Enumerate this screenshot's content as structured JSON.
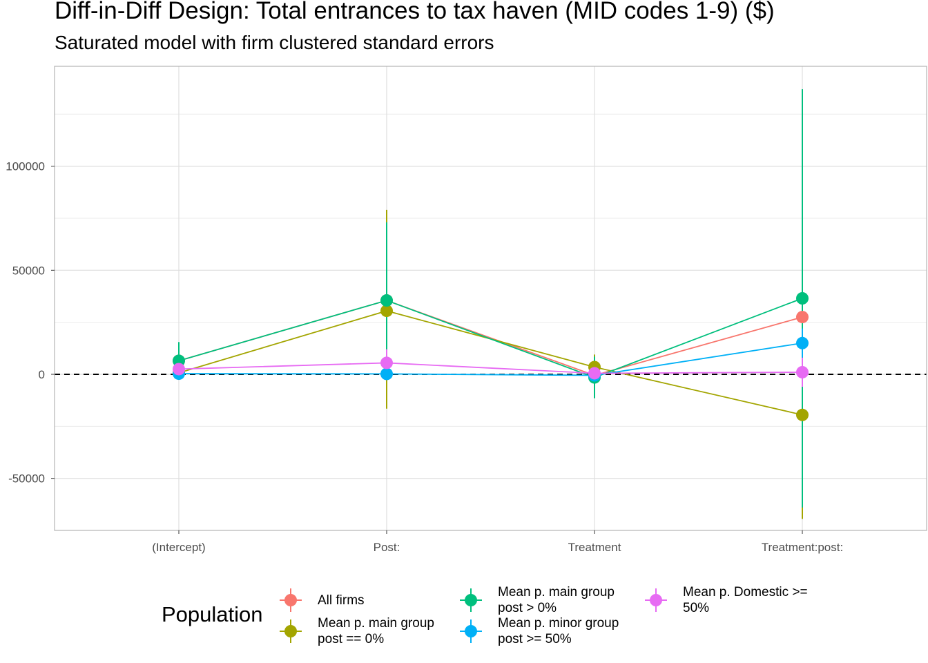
{
  "title": "Diff-in-Diff Design: Total entrances to tax haven (MID codes 1-9)  ($)",
  "subtitle": "Saturated model with firm clustered standard errors",
  "legend": {
    "title": "Population",
    "position": "bottom"
  },
  "chart_data": {
    "type": "line",
    "categories": [
      "(Intercept)",
      "Post:",
      "Treatment",
      "Treatment:post:"
    ],
    "ylim": [
      -75000,
      148000
    ],
    "y_ticks": [
      {
        "value": -50000,
        "label": "-50000"
      },
      {
        "value": 0,
        "label": "0"
      },
      {
        "value": 50000,
        "label": "50000"
      },
      {
        "value": 100000,
        "label": "100000"
      }
    ],
    "y_minor_ticks": [
      -75000,
      -25000,
      25000,
      75000,
      125000
    ],
    "reference_line": {
      "y": 0,
      "style": "dashed",
      "color": "#000000"
    },
    "grid": true,
    "series": [
      {
        "name": "All firms",
        "color": "#F8766D",
        "values": [
          6500,
          35500,
          -500,
          27500
        ],
        "lower": [
          2500,
          18000,
          -8000,
          18000
        ],
        "upper": [
          10500,
          53000,
          7000,
          37000
        ]
      },
      {
        "name": "Mean p. main group\npost == 0%",
        "color": "#A3A500",
        "values": [
          700,
          30500,
          3500,
          -19500
        ],
        "lower": [
          -2000,
          -16500,
          -2500,
          -69500
        ],
        "upper": [
          3400,
          79000,
          9500,
          30500
        ]
      },
      {
        "name": "Mean p. main group\npost > 0%",
        "color": "#00BF7D",
        "values": [
          6500,
          35500,
          -1500,
          36500
        ],
        "lower": [
          -2500,
          -2000,
          -11500,
          -64000
        ],
        "upper": [
          15500,
          73000,
          8500,
          137000
        ]
      },
      {
        "name": "Mean p. minor group\npost >= 50%",
        "color": "#00B0F6",
        "values": [
          300,
          200,
          -500,
          15000
        ],
        "lower": [
          -1500,
          -2000,
          -3000,
          8000
        ],
        "upper": [
          2100,
          2400,
          2000,
          22000
        ]
      },
      {
        "name": "Mean p. Domestic >=\n50%",
        "color": "#E76BF3",
        "values": [
          2500,
          5500,
          500,
          1000
        ],
        "lower": [
          -1500,
          -1000,
          -2500,
          -6000
        ],
        "upper": [
          6500,
          12000,
          3500,
          8000
        ]
      }
    ]
  }
}
